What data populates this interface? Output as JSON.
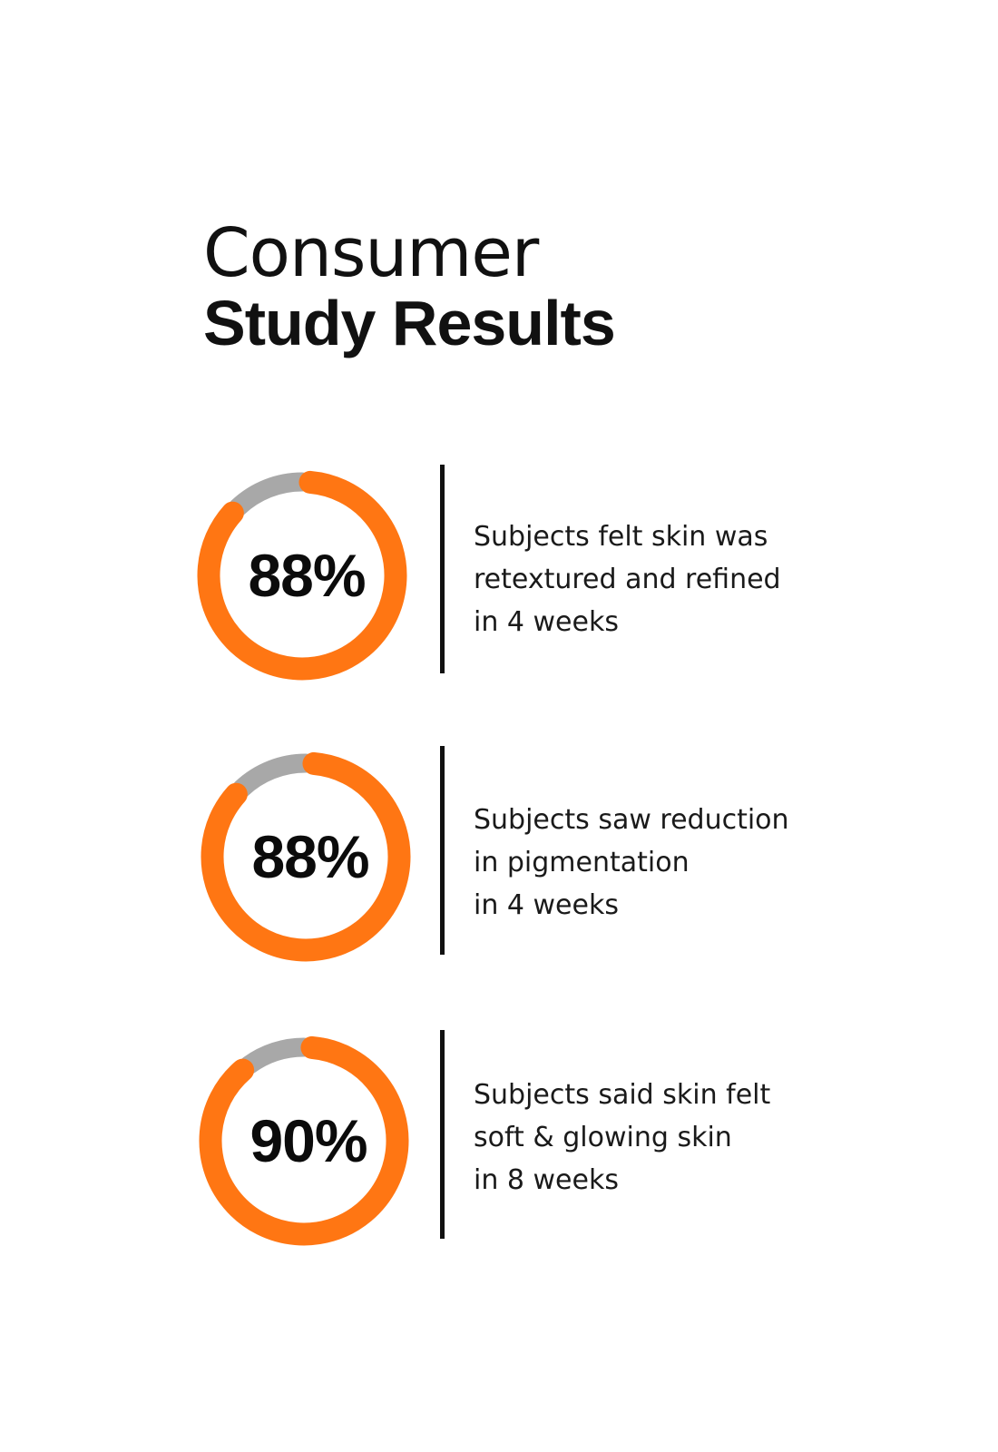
{
  "heading": {
    "line1": "Consumer",
    "line2": "Study Results"
  },
  "colors": {
    "accent": "#FF7613",
    "track": "#A8A8A8",
    "text": "#111111"
  },
  "chart_data": {
    "type": "pie",
    "stats": [
      {
        "value": 88,
        "label": "88%",
        "lines": [
          "Subjects felt skin was",
          "retextured and refined",
          "in 4 weeks"
        ]
      },
      {
        "value": 88,
        "label": "88%",
        "lines": [
          "Subjects saw reduction",
          "in pigmentation",
          "in 4 weeks"
        ]
      },
      {
        "value": 90,
        "label": "90%",
        "lines": [
          "Subjects said skin felt",
          "soft & glowing skin",
          "in 8 weeks"
        ]
      }
    ]
  }
}
